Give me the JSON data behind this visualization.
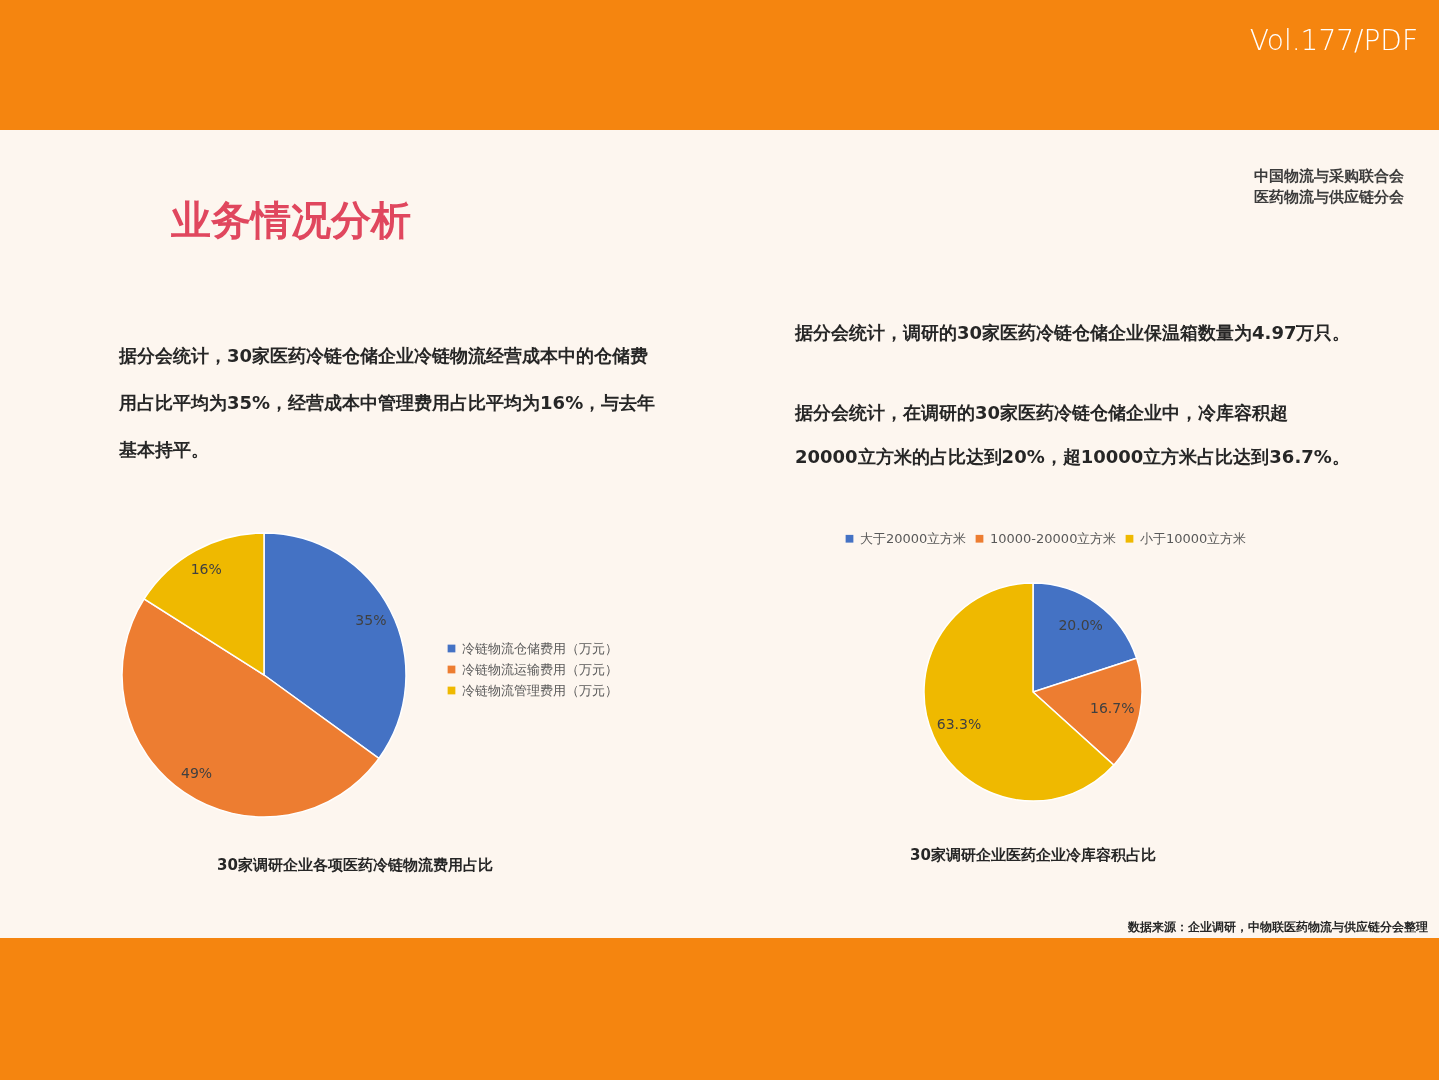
{
  "chart_data": [
    {
      "type": "other",
      "title": "业务情况分析",
      "annotations": [
        "Vol.177/PDF",
        "中国物流与采购联合会",
        "医药物流与供应链分会",
        "据分会统计，30家医药冷链仓储企业冷链物流经营成本中的仓储费用占比平均为35%，经营成本中管理费用占比平均为16%，与去年基本持平。",
        "据分会统计，调研的30家医药冷链仓储企业保温箱数量为4.97万只。",
        "据分会统计，在调研的30家医药冷链仓储企业中，冷库容积超20000立方米的占比达到20%，超10000立方米占比达到36.7%。"
      ]
    },
    {
      "type": "pie",
      "title": "30家调研企业各项医药冷链物流费用占比",
      "categories": [
        "冷链物流仓储费用（万元）",
        "冷链物流运输费用（万元）",
        "冷链物流管理费用（万元）"
      ],
      "values": [
        35,
        49,
        16
      ],
      "colors": [
        "#4472c4",
        "#ed7d31",
        "#efb900"
      ],
      "value_labels": [
        "35%",
        "49%",
        "16%"
      ],
      "legend": "right"
    },
    {
      "type": "pie",
      "title": "30家调研企业医药企业冷库容积占比",
      "categories": [
        "大于20000立方米",
        "10000-20000立方米",
        "小于10000立方米"
      ],
      "values": [
        20.0,
        16.7,
        63.3
      ],
      "colors": [
        "#4472c4",
        "#ed7d31",
        "#efb900"
      ],
      "value_labels": [
        "20.0%",
        "16.7%",
        "63.3%"
      ],
      "legend": "top",
      "annotations": [
        "数据来源：企业调研，中物联医药物流与供应链分会整理"
      ]
    }
  ]
}
